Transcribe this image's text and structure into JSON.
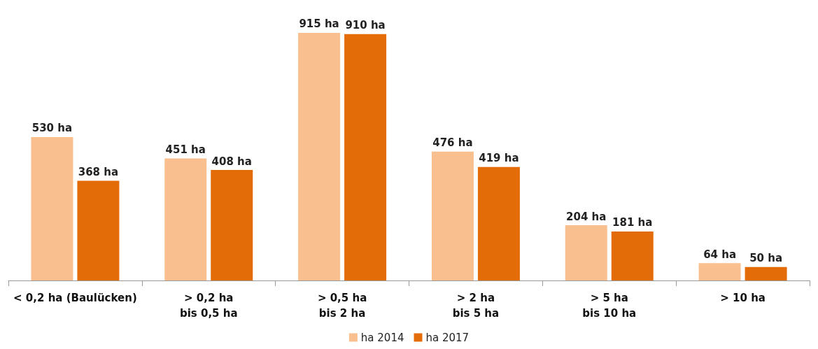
{
  "chart_data": {
    "type": "bar",
    "categories": [
      "< 0,2 ha (Baulücken)",
      "> 0,2 ha\nbis 0,5 ha",
      "> 0,5 ha\nbis 2 ha",
      "> 2 ha\nbis 5 ha",
      "> 5 ha\nbis 10 ha",
      "> 10 ha"
    ],
    "series": [
      {
        "name": "ha 2014",
        "color": "#f9bf8f",
        "values": [
          530,
          451,
          915,
          476,
          204,
          64
        ],
        "value_labels": [
          "530 ha",
          "451 ha",
          "915 ha",
          "476 ha",
          "204 ha",
          "64 ha"
        ]
      },
      {
        "name": "ha 2017",
        "color": "#e36c09",
        "values": [
          368,
          408,
          910,
          419,
          181,
          50
        ],
        "value_labels": [
          "368 ha",
          "408 ha",
          "910 ha",
          "419 ha",
          "181 ha",
          "50 ha"
        ]
      }
    ],
    "legend": "bottom"
  }
}
